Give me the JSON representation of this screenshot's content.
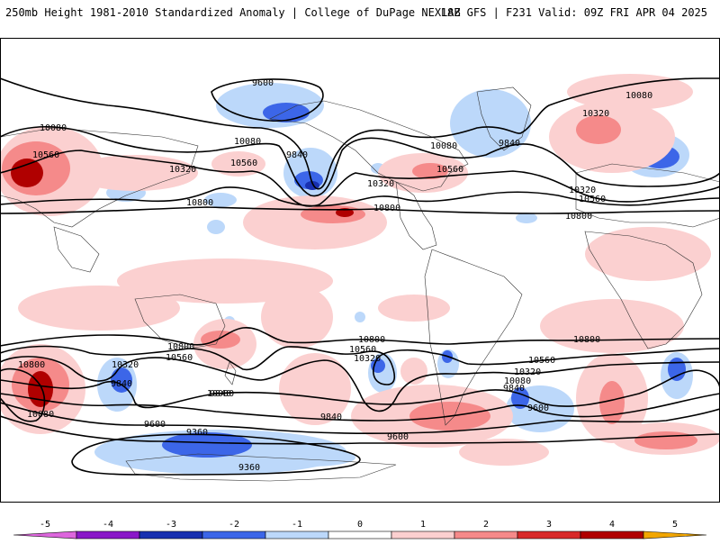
{
  "header": {
    "title": "250mb Height 1981-2010 Standardized Anomaly | College of DuPage NEXLAB",
    "run_info": "18Z GFS | F231 Valid: 09Z FRI APR 04 2025"
  },
  "legend": {
    "ticks": [
      "-5",
      "-4",
      "-3",
      "-2",
      "-1",
      "0",
      "1",
      "2",
      "3",
      "4",
      "5"
    ],
    "colors": [
      "#dd66dd",
      "#8a18c8",
      "#1830b0",
      "#3c66e8",
      "#bcd8fa",
      "#ffffff",
      "#fbd0d0",
      "#f58a8a",
      "#d82a2a",
      "#b00000",
      "#f2a600"
    ]
  },
  "contours": {
    "labels": [
      "9600",
      "10080",
      "10560",
      "10320",
      "9840",
      "10080",
      "10800",
      "10080",
      "10320",
      "10560",
      "9840",
      "10800",
      "10320",
      "10560",
      "10080",
      "10320",
      "10560",
      "10800",
      "10800",
      "10080",
      "10800",
      "10560",
      "10320",
      "9840",
      "10800",
      "10560",
      "10320",
      "9840",
      "10080",
      "9840",
      "9600",
      "9360",
      "9360",
      "10800",
      "10560",
      "10320",
      "10080",
      "9840",
      "9600",
      "9600"
    ]
  },
  "anomaly_colors": {
    "light_blue": "#bcd8fa",
    "blue": "#3c66e8",
    "dark_blue": "#1830b0",
    "light_red": "#fbd0d0",
    "red": "#f58a8a",
    "dark_red": "#b00000"
  }
}
